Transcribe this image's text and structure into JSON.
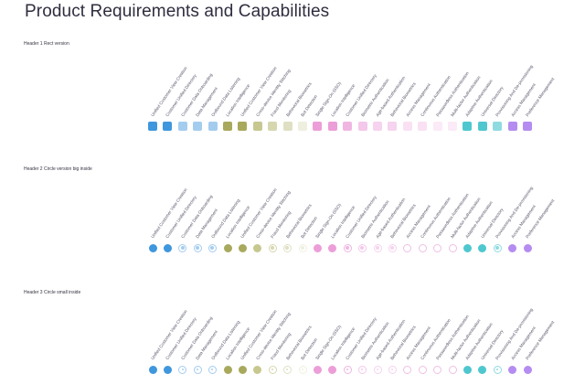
{
  "page": {
    "title": "Product Requirements and Capabilities"
  },
  "sections": [
    {
      "header": "Header 1 Rect version",
      "style": "rect"
    },
    {
      "header": "Header 2 Circle version big inside",
      "style": "circle-big"
    },
    {
      "header": "Header 3 Circle small inside",
      "style": "circle-small"
    }
  ],
  "capabilities": [
    {
      "label": "Unified Customer View Creation",
      "color": "#3f97dd",
      "variant": "fill"
    },
    {
      "label": "Customer Unified Directory",
      "color": "#3f97dd",
      "variant": "fill"
    },
    {
      "label": "Customer Data Onboarding",
      "color": "#a4ccef",
      "variant": "ring"
    },
    {
      "label": "Data Management",
      "color": "#a4ccef",
      "variant": "ring"
    },
    {
      "label": "Outbound Data Listening",
      "color": "#a4ccef",
      "variant": "ring"
    },
    {
      "label": "Location Intelligence",
      "color": "#a8a95c",
      "variant": "fill"
    },
    {
      "label": "Unified Customer View Creation",
      "color": "#a8a95c",
      "variant": "fill"
    },
    {
      "label": "Cross-device Identity Stitching",
      "color": "#c6c88f",
      "variant": "fill"
    },
    {
      "label": "Fraud Monitoring",
      "color": "#d6d7ae",
      "variant": "ring"
    },
    {
      "label": "Behavioral Biometrics",
      "color": "#dfe0c3",
      "variant": "ring"
    },
    {
      "label": "Bot Detection",
      "color": "#eeefdf",
      "variant": "ring"
    },
    {
      "label": "Single Sign-On (SSO)",
      "color": "#ec9ed8",
      "variant": "fill"
    },
    {
      "label": "Location Intelligence",
      "color": "#ec9ed8",
      "variant": "fill"
    },
    {
      "label": "Customer Unified Directory",
      "color": "#f0b6e2",
      "variant": "ring"
    },
    {
      "label": "Biometric Authentication",
      "color": "#f4c8ea",
      "variant": "ring"
    },
    {
      "label": "Age-based Authentication",
      "color": "#f6d3ee",
      "variant": "ring"
    },
    {
      "label": "Behavioral Biometrics",
      "color": "#f6d3ee",
      "variant": "ring"
    },
    {
      "label": "Access Management",
      "color": "#f9e1f3",
      "variant": "hollow"
    },
    {
      "label": "Continuous Authentication",
      "color": "#f9e1f3",
      "variant": "hollow"
    },
    {
      "label": "Passwordless Authentication",
      "color": "#fbeaf7",
      "variant": "hollow"
    },
    {
      "label": "Multi-factor Authentication",
      "color": "#fbeaf7",
      "variant": "hollow"
    },
    {
      "label": "Adaptive Authentication",
      "color": "#4fc7cf",
      "variant": "fill"
    },
    {
      "label": "Universal Directory",
      "color": "#4fc7cf",
      "variant": "fill"
    },
    {
      "label": "Provisioning And De-provisioning",
      "color": "#8fdbe0",
      "variant": "ring"
    },
    {
      "label": "Access Management",
      "color": "#b58cf0",
      "variant": "fill"
    },
    {
      "label": "Preference Management",
      "color": "#b58cf0",
      "variant": "fill"
    }
  ]
}
